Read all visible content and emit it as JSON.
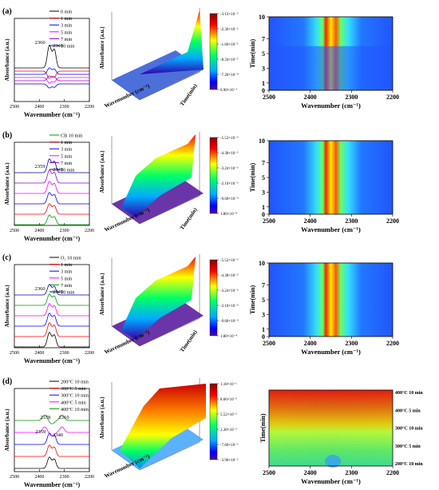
{
  "chart_data": [
    {
      "panel": "(a)",
      "type": "line",
      "xlabel": "Wavenumber (cm⁻¹)",
      "ylabel": "Absorbance (a.u.)",
      "xticks": [
        "2500",
        "2400",
        "2300",
        "2200"
      ],
      "x": [
        2500,
        2420,
        2390,
        2375,
        2360,
        2350,
        2340,
        2325,
        2300,
        2200
      ],
      "legend": [
        {
          "name": "0 min",
          "color": "#000000"
        },
        {
          "name": "1 min",
          "color": "#ff0000"
        },
        {
          "name": "3 min",
          "color": "#0000ff"
        },
        {
          "name": "5 min",
          "color": "#ff00ff"
        },
        {
          "name": "7 min",
          "color": "#9900cc"
        },
        {
          "name": "10 min",
          "color": "#0000aa"
        }
      ],
      "annotations": [
        "2360",
        "2340"
      ],
      "series": [
        {
          "name": "0 min",
          "values": [
            0,
            0,
            0.1,
            0.3,
            0.8,
            0.4,
            0.7,
            0.2,
            0,
            0
          ]
        },
        {
          "name": "1 min",
          "values": [
            0,
            0,
            -0.05,
            -0.3,
            -0.5,
            -0.2,
            -0.4,
            -0.1,
            0,
            0
          ]
        }
      ]
    },
    {
      "panel": "(a)",
      "type": "surface3d",
      "xlabel": "Wavenumber (cm⁻¹)",
      "ylabel": "Absorbance (a.u.)",
      "zlabel": "Time(min)",
      "colorbar": [
        "-3.12×10⁻²",
        "-2.36×10⁻²",
        "-1.60×10⁻²",
        "-8.34×10⁻³",
        "-7.20×10⁻⁴",
        "6.90×10⁻³"
      ]
    },
    {
      "panel": "(a)",
      "type": "heatmap",
      "xlabel": "Wavenumber (cm⁻¹)",
      "ylabel": "Time(min)",
      "xticks": [
        "2500",
        "2400",
        "2300",
        "2200"
      ],
      "yticks": [
        "10",
        "7",
        "5",
        "3",
        "1",
        "0"
      ]
    },
    {
      "panel": "(b)",
      "type": "line",
      "xlabel": "Wavenumber (cm⁻¹)",
      "ylabel": "Absorbance (a.u.)",
      "xticks": [
        "2500",
        "2400",
        "2300",
        "2200"
      ],
      "legend": [
        {
          "name": "CB 10 min",
          "color": "#009900"
        },
        {
          "name": "1 min",
          "color": "#ff0000"
        },
        {
          "name": "3 min",
          "color": "#0000ff"
        },
        {
          "name": "5 min",
          "color": "#ff00ff"
        },
        {
          "name": "7 min",
          "color": "#9900cc"
        },
        {
          "name": "10 min",
          "color": "#0000aa"
        }
      ],
      "annotations": [
        "2359",
        "2340"
      ]
    },
    {
      "panel": "(b)",
      "type": "surface3d",
      "xlabel": "Wavenumber (cm⁻¹)",
      "ylabel": "Absorbance (a.u.)",
      "zlabel": "Time(min)",
      "colorbar": [
        "-5.52×10⁻³",
        "-4.38×10⁻³",
        "-3.24×10⁻³",
        "-2.10×10⁻³",
        "-9.60×10⁻⁴",
        "1.80×10⁻⁴"
      ]
    },
    {
      "panel": "(b)",
      "type": "heatmap",
      "xlabel": "Wavenumber (cm⁻¹)",
      "ylabel": "Time(min)",
      "xticks": [
        "2500",
        "2400",
        "2300",
        "2200"
      ],
      "yticks": [
        "10",
        "7",
        "5",
        "3",
        "1",
        "0"
      ]
    },
    {
      "panel": "(c)",
      "type": "line",
      "xlabel": "Wavenumber (cm⁻¹)",
      "ylabel": "Absorbance (a.u.)",
      "xticks": [
        "2500",
        "2400",
        "2300",
        "2200"
      ],
      "legend": [
        {
          "name": "O₂ 10 min",
          "color": "#000000"
        },
        {
          "name": "1 min",
          "color": "#ff0000"
        },
        {
          "name": "3 min",
          "color": "#0000ff"
        },
        {
          "name": "5 min",
          "color": "#ff00ff"
        },
        {
          "name": "7 min",
          "color": "#009900"
        },
        {
          "name": "10 min",
          "color": "#0000aa"
        }
      ],
      "annotations": [
        "2360",
        "2340"
      ]
    },
    {
      "panel": "(c)",
      "type": "surface3d",
      "xlabel": "Wavenumber (cm⁻¹)",
      "ylabel": "Absorbance (a.u.)",
      "zlabel": "Time(min)",
      "colorbar": [
        "-5.52×10⁻³",
        "-4.38×10⁻³",
        "-3.24×10⁻³",
        "-2.10×10⁻³",
        "-9.60×10⁻⁴",
        "1.80×10⁻⁴"
      ]
    },
    {
      "panel": "(c)",
      "type": "heatmap",
      "xlabel": "Wavenumber (cm⁻¹)",
      "ylabel": "Time(min)",
      "xticks": [
        "2500",
        "2400",
        "2300",
        "2200"
      ],
      "yticks": [
        "10",
        "7",
        "5",
        "3",
        "1",
        "0"
      ]
    },
    {
      "panel": "(d)",
      "type": "line",
      "xlabel": "Wavenumber (cm⁻¹)",
      "ylabel": "Absorbance (a.u.)",
      "xticks": [
        "2500",
        "2400",
        "2300",
        "2200"
      ],
      "legend": [
        {
          "name": "200°C 10 min",
          "color": "#000000"
        },
        {
          "name": "300°C 5 min",
          "color": "#ff0000"
        },
        {
          "name": "300°C 10 min",
          "color": "#0000ff"
        },
        {
          "name": "400°C 5 min",
          "color": "#ff00ff"
        },
        {
          "name": "400°C 10 min",
          "color": "#009900"
        }
      ],
      "annotations": [
        "2378",
        "2310",
        "2359",
        "2340"
      ]
    },
    {
      "panel": "(d)",
      "type": "surface3d",
      "xlabel": "Wavenumber (cm⁻¹)",
      "ylabel": "Absorbance (a.u.)",
      "colorbar": [
        "1.18×10⁻¹",
        "8.66×10⁻²",
        "5.52×10⁻²",
        "2.38×10⁻²",
        "-7.60×10⁻³",
        "-3.90×10⁻²"
      ]
    },
    {
      "panel": "(d)",
      "type": "heatmap",
      "xlabel": "Wavenumber (cm⁻¹)",
      "ylabel": "Time(min)",
      "xticks": [
        "2500",
        "2400",
        "2300",
        "2200"
      ],
      "yticks": [
        "400°C 10 min",
        "400°C 5 min",
        "300°C 10 min",
        "300°C 5 min",
        "200°C 10 min"
      ]
    }
  ]
}
